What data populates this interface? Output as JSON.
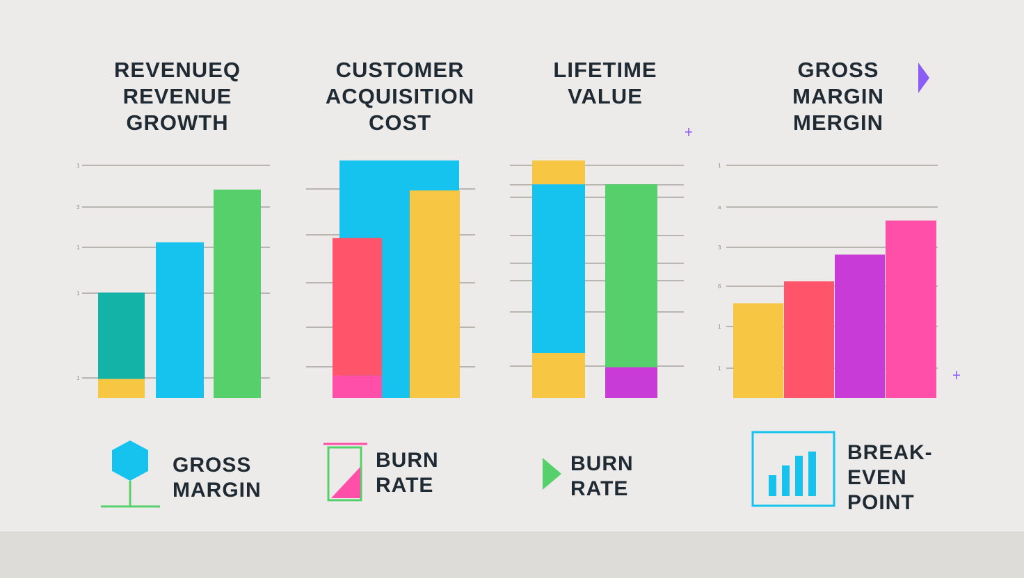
{
  "charts": [
    {
      "title": "REVENUEQ\nREVENUE\nGROWTH"
    },
    {
      "title": "CUSTOMER\nACQUISITION\nCOST"
    },
    {
      "title": "LIFETIME\nVALUE"
    },
    {
      "title": "GROSS\nMARGIN\nMERGIN"
    }
  ],
  "chart_data": [
    {
      "type": "bar",
      "title": "REVENUEQ REVENUE GROWTH",
      "tick_labels": [
        "1",
        "3",
        "1",
        "1",
        "1"
      ],
      "ylim": [
        0,
        100
      ],
      "grid": true,
      "bars": [
        {
          "segments": [
            {
              "value": 8,
              "color": "#f7c744"
            },
            {
              "value": 36,
              "color": "#13b3a8"
            }
          ]
        },
        {
          "segments": [
            {
              "value": 65,
              "color": "#16c3ee"
            }
          ]
        },
        {
          "segments": [
            {
              "value": 87,
              "color": "#55d06a"
            }
          ]
        }
      ]
    },
    {
      "type": "bar",
      "title": "CUSTOMER ACQUISITION COST",
      "ylim": [
        0,
        100
      ],
      "grid": true,
      "bars": [
        {
          "segments": [
            {
              "value": 95,
              "color": "#16c3ee"
            }
          ]
        },
        {
          "segments": [
            {
              "value": 9,
              "color": "#ff4fa8"
            },
            {
              "value": 55,
              "color": "#ff546a"
            }
          ]
        },
        {
          "segments": [
            {
              "value": 83,
              "color": "#f7c744"
            }
          ]
        }
      ]
    },
    {
      "type": "bar",
      "title": "LIFETIME VALUE",
      "ylim": [
        0,
        100
      ],
      "grid": true,
      "bars": [
        {
          "segments": [
            {
              "value": 19,
              "color": "#f7c744"
            },
            {
              "value": 71,
              "color": "#16c3ee"
            },
            {
              "value": 10,
              "color": "#f7c744"
            }
          ]
        },
        {
          "segments": [
            {
              "value": 13,
              "color": "#c83bd6"
            },
            {
              "value": 77,
              "color": "#55d06a"
            }
          ]
        }
      ]
    },
    {
      "type": "bar",
      "title": "GROSS MARGIN MERGIN",
      "tick_labels": [
        "1",
        "a",
        "3",
        "6",
        "1",
        "1"
      ],
      "ylim": [
        0,
        100
      ],
      "grid": true,
      "bars": [
        {
          "segments": [
            {
              "value": 39,
              "color": "#f7c744"
            }
          ]
        },
        {
          "segments": [
            {
              "value": 48,
              "color": "#ff546a"
            }
          ]
        },
        {
          "segments": [
            {
              "value": 59,
              "color": "#c83bd6"
            }
          ]
        },
        {
          "segments": [
            {
              "value": 73,
              "color": "#ff4fa8"
            }
          ]
        }
      ]
    }
  ],
  "legend": [
    {
      "label": "GROSS\nMARGIN",
      "icon": "hexagon-icon",
      "color": "#16c3ee"
    },
    {
      "label": "BURN\nRATE",
      "icon": "burn-rate-icon",
      "color": "#ff4fa8"
    },
    {
      "label": "BURN\nRATE",
      "icon": "play-triangle-icon",
      "color": "#55d06a"
    },
    {
      "label": "BREAK-\nEVEN\nPOINT",
      "icon": "bar-chart-icon",
      "color": "#16c3ee"
    }
  ],
  "colors": {
    "text": "#1f2a33",
    "grid": "#b9b6b2",
    "accent": "#8b5cf6"
  }
}
